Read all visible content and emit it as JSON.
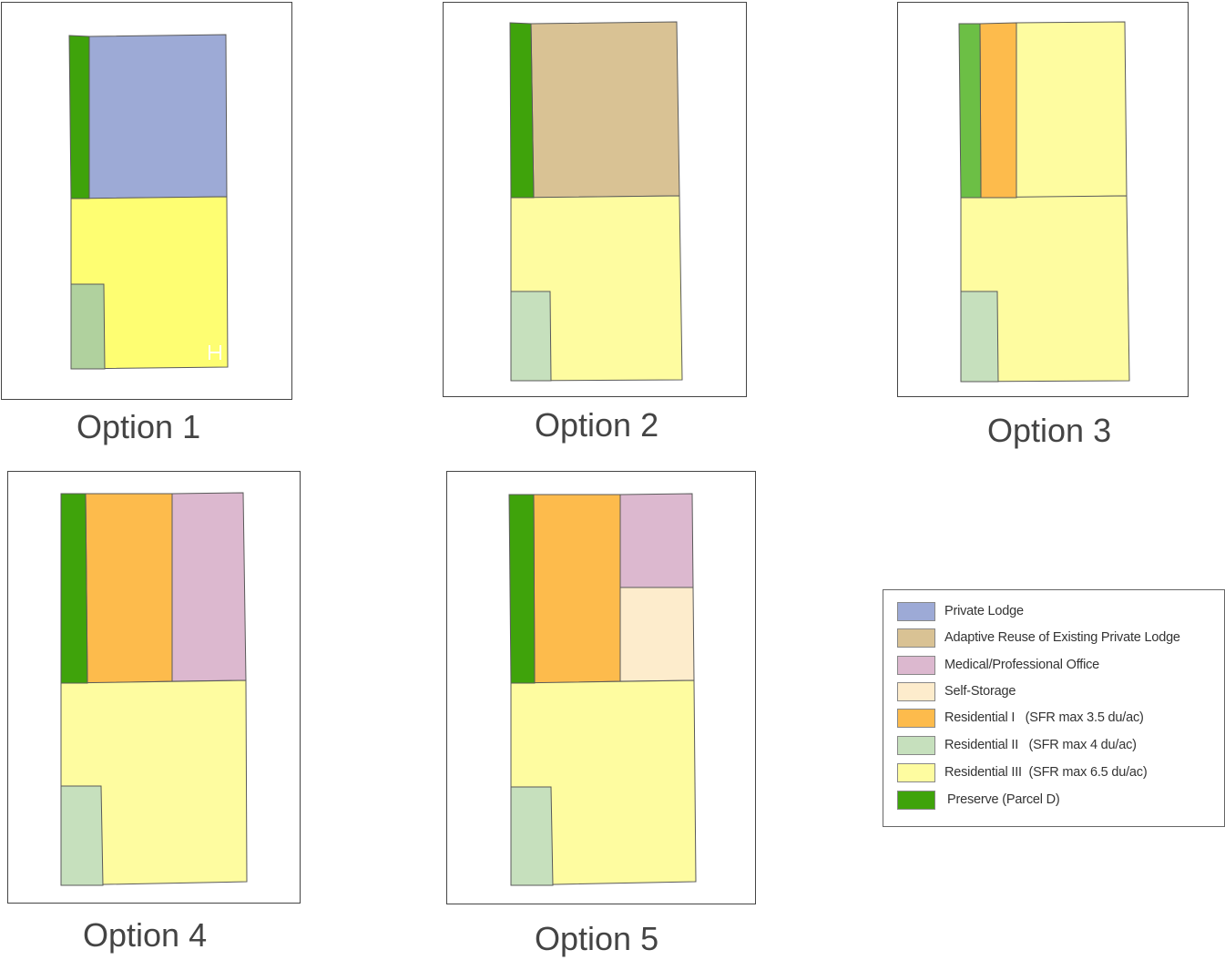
{
  "colors": {
    "private_lodge": "#9daad6",
    "adaptive_reuse": "#d9c294",
    "medical_office": "#dcb8cf",
    "self_storage": "#fdeccc",
    "residential_1": "#fdbb4c",
    "residential_2": "#c6e0bd",
    "residential_3": "#fefca0",
    "residential_3_bright": "#fefe72",
    "preserve": "#3fa30b",
    "preserve_light": "#6cbf45",
    "residential_2_dark": "#b0d19e"
  },
  "options": [
    {
      "caption": "Option 1"
    },
    {
      "caption": "Option 2"
    },
    {
      "caption": "Option 3"
    },
    {
      "caption": "Option 4"
    },
    {
      "caption": "Option 5"
    }
  ],
  "legend": {
    "items": [
      {
        "label": "Private Lodge",
        "color": "#9daad6",
        "icon": "private-lodge-swatch"
      },
      {
        "label": "Adaptive Reuse of Existing Private Lodge",
        "color": "#d9c294",
        "icon": "adaptive-reuse-swatch"
      },
      {
        "label": "Medical/Professional Office",
        "color": "#dcb8cf",
        "icon": "medical-office-swatch"
      },
      {
        "label": "Self-Storage",
        "color": "#fdeccc",
        "icon": "self-storage-swatch"
      },
      {
        "label": "Residential I   (SFR max 3.5 du/ac)",
        "color": "#fdbb4c",
        "icon": "residential-1-swatch"
      },
      {
        "label": "Residential II   (SFR max 4 du/ac)",
        "color": "#c6e0bd",
        "icon": "residential-2-swatch"
      },
      {
        "label": "Residential III  (SFR max 6.5 du/ac)",
        "color": "#fefca0",
        "icon": "residential-3-swatch"
      },
      {
        "label": "Preserve (Parcel D)",
        "color": "#3fa30b",
        "icon": "preserve-swatch"
      }
    ]
  }
}
